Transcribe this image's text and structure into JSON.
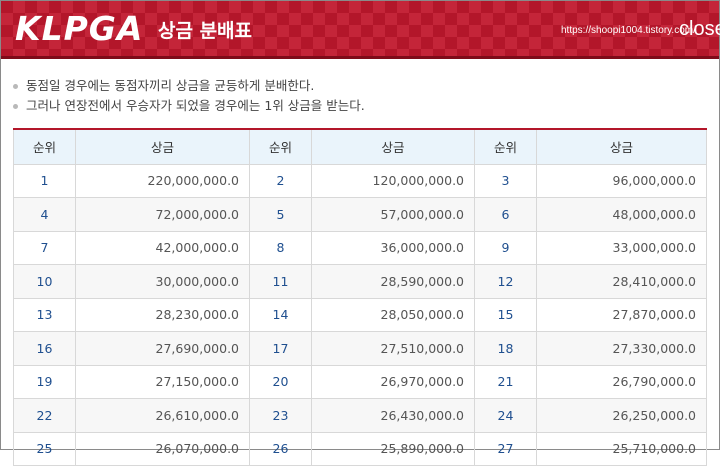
{
  "header": {
    "logo": "KLPGA",
    "title": "상금 분배표",
    "url": "https://shoopi1004.tistory.com/",
    "close_label": "close"
  },
  "notes": [
    "동점일 경우에는 동점자끼리 상금을 균등하게 분배한다.",
    "그러나 연장전에서 우승자가 되었을 경우에는 1위 상금을 받는다."
  ],
  "table": {
    "headers": [
      "순위",
      "상금",
      "순위",
      "상금",
      "순위",
      "상금"
    ],
    "rows": [
      [
        {
          "rank": "1",
          "prize": "220,000,000.0"
        },
        {
          "rank": "2",
          "prize": "120,000,000.0"
        },
        {
          "rank": "3",
          "prize": "96,000,000.0"
        }
      ],
      [
        {
          "rank": "4",
          "prize": "72,000,000.0"
        },
        {
          "rank": "5",
          "prize": "57,000,000.0"
        },
        {
          "rank": "6",
          "prize": "48,000,000.0"
        }
      ],
      [
        {
          "rank": "7",
          "prize": "42,000,000.0"
        },
        {
          "rank": "8",
          "prize": "36,000,000.0"
        },
        {
          "rank": "9",
          "prize": "33,000,000.0"
        }
      ],
      [
        {
          "rank": "10",
          "prize": "30,000,000.0"
        },
        {
          "rank": "11",
          "prize": "28,590,000.0"
        },
        {
          "rank": "12",
          "prize": "28,410,000.0"
        }
      ],
      [
        {
          "rank": "13",
          "prize": "28,230,000.0"
        },
        {
          "rank": "14",
          "prize": "28,050,000.0"
        },
        {
          "rank": "15",
          "prize": "27,870,000.0"
        }
      ],
      [
        {
          "rank": "16",
          "prize": "27,690,000.0"
        },
        {
          "rank": "17",
          "prize": "27,510,000.0"
        },
        {
          "rank": "18",
          "prize": "27,330,000.0"
        }
      ],
      [
        {
          "rank": "19",
          "prize": "27,150,000.0"
        },
        {
          "rank": "20",
          "prize": "26,970,000.0"
        },
        {
          "rank": "21",
          "prize": "26,790,000.0"
        }
      ],
      [
        {
          "rank": "22",
          "prize": "26,610,000.0"
        },
        {
          "rank": "23",
          "prize": "26,430,000.0"
        },
        {
          "rank": "24",
          "prize": "26,250,000.0"
        }
      ],
      [
        {
          "rank": "25",
          "prize": "26,070,000.0"
        },
        {
          "rank": "26",
          "prize": "25,890,000.0"
        },
        {
          "rank": "27",
          "prize": "25,710,000.0"
        }
      ]
    ]
  },
  "colors": {
    "brand_red": "#b3162a",
    "header_bg": "#eaf4fb",
    "rank_text": "#1f4f8f"
  }
}
